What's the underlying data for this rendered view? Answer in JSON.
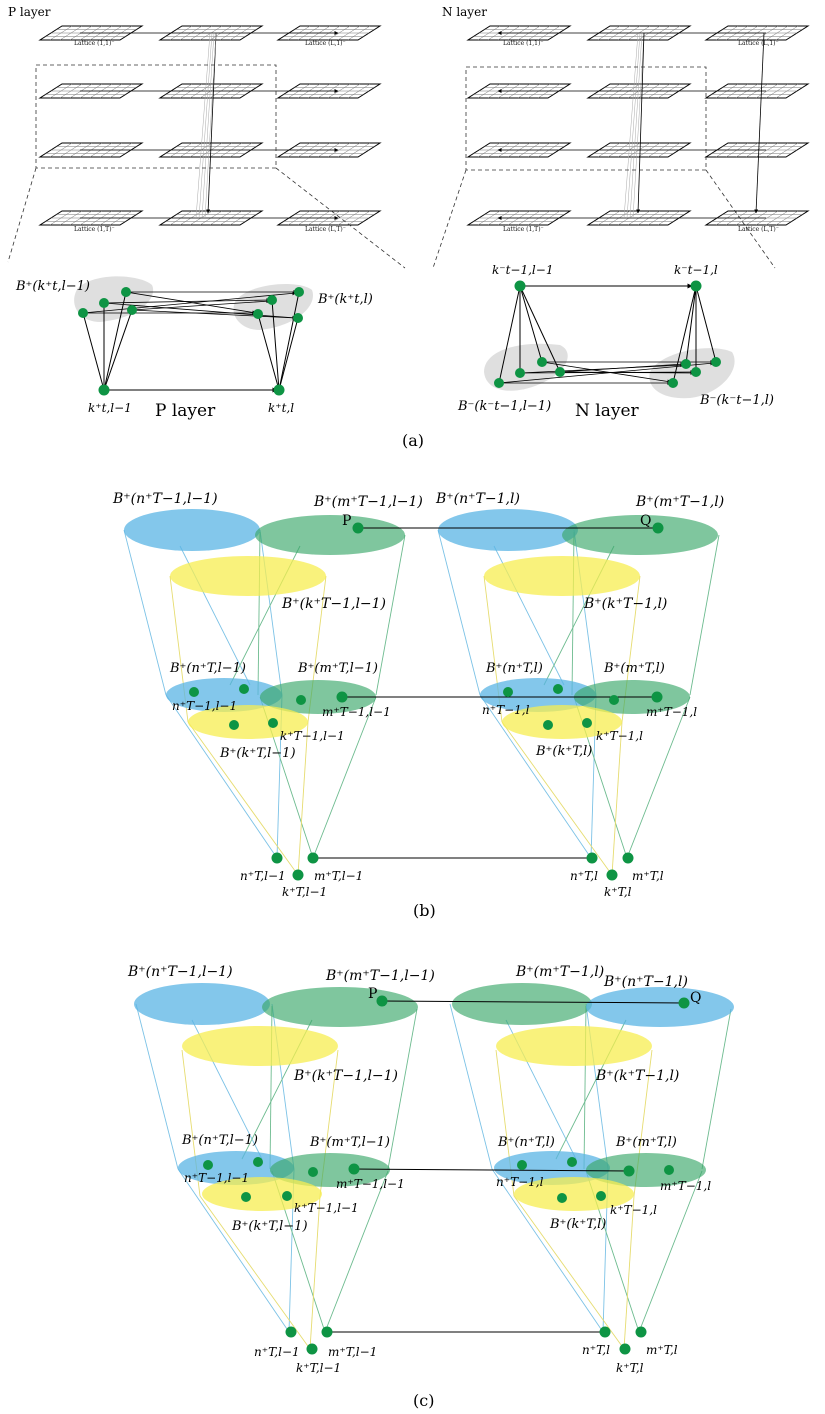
{
  "panel_a": {
    "p_layer_title": "P layer",
    "n_layer_title": "N layer",
    "p_lattice_labels": [
      "Lattice (1,1)⁻",
      "Lattice (L,1)⁻",
      "Lattice (1,T)⁻",
      "Lattice (L,T)⁻"
    ],
    "n_lattice_labels": [
      "Lattice (1,1)⁻",
      "Lattice (L,1)⁻",
      "Lattice (1,T)⁻",
      "Lattice (L,T)⁻"
    ],
    "p_caption": "P layer",
    "n_caption": "N layer",
    "p_ball_left": "B⁺(k⁺t,l−1)",
    "p_ball_right": "B⁺(k⁺t,l)",
    "p_node_left": "k⁺t,l−1",
    "p_node_right": "k⁺t,l",
    "n_node_left": "k⁻t−1,l−1",
    "n_node_right": "k⁻t−1,l",
    "n_ball_left": "B⁻(k⁻t−1,l−1)",
    "n_ball_right": "B⁻(k⁻t−1,l)",
    "caption": "(a)"
  },
  "panel_b": {
    "top_labels": [
      "B⁺(n⁺T−1,l−1)",
      "B⁺(m⁺T−1,l−1)",
      "B⁺(n⁺T−1,l)",
      "B⁺(m⁺T−1,l)"
    ],
    "point_p": "P",
    "point_q": "Q",
    "yellow_labels": [
      "B⁺(k⁺T−1,l−1)",
      "B⁺(k⁺T−1,l)"
    ],
    "mid_labels": [
      "B⁺(n⁺T,l−1)",
      "B⁺(m⁺T,l−1)",
      "B⁺(n⁺T,l)",
      "B⁺(m⁺T,l)"
    ],
    "mid_nodes": [
      "n⁺T−1,l−1",
      "m⁺T−1,l−1",
      "k⁺T−1,l−1",
      "n⁺T−1,l",
      "m⁺T−1,l",
      "k⁺T−1,l"
    ],
    "mid_yellow_labels": [
      "B⁺(k⁺T,l−1)",
      "B⁺(k⁺T,l)"
    ],
    "bottom_nodes": [
      "n⁺T,l−1",
      "m⁺T,l−1",
      "k⁺T,l−1",
      "n⁺T,l",
      "m⁺T,l",
      "k⁺T,l"
    ],
    "caption": "(b)"
  },
  "panel_c": {
    "top_labels": [
      "B⁺(n⁺T−1,l−1)",
      "B⁺(m⁺T−1,l−1)",
      "B⁺(m⁺T−1,l)",
      "B⁺(n⁺T−1,l)"
    ],
    "point_p": "P",
    "point_q": "Q",
    "yellow_labels": [
      "B⁺(k⁺T−1,l−1)",
      "B⁺(k⁺T−1,l)"
    ],
    "mid_labels": [
      "B⁺(n⁺T,l−1)",
      "B⁺(m⁺T,l−1)",
      "B⁺(n⁺T,l)",
      "B⁺(m⁺T,l)"
    ],
    "mid_nodes": [
      "n⁺T−1,l−1",
      "m⁺T−1,l−1",
      "k⁺T−1,l−1",
      "n⁺T−1,l",
      "m⁺T−1,l",
      "k⁺T−1,l"
    ],
    "mid_yellow_labels": [
      "B⁺(k⁺T,l−1)",
      "B⁺(k⁺T,l)"
    ],
    "bottom_nodes": [
      "n⁺T,l−1",
      "m⁺T,l−1",
      "k⁺T,l−1",
      "n⁺T,l",
      "m⁺T,l",
      "k⁺T,l"
    ],
    "caption": "(c)"
  },
  "colors": {
    "node": "#0e9444",
    "blue_ball": "#5ab4e4",
    "green_ball": "#3aa86a",
    "yellow_ball": "#f7ee50",
    "grey_ball": "#d9d9d9"
  }
}
